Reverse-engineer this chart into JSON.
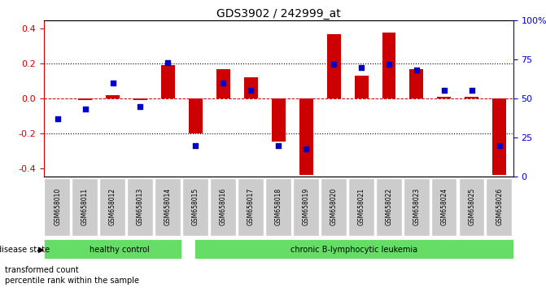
{
  "title": "GDS3902 / 242999_at",
  "samples": [
    "GSM658010",
    "GSM658011",
    "GSM658012",
    "GSM658013",
    "GSM658014",
    "GSM658015",
    "GSM658016",
    "GSM658017",
    "GSM658018",
    "GSM658019",
    "GSM658020",
    "GSM658021",
    "GSM658022",
    "GSM658023",
    "GSM658024",
    "GSM658025",
    "GSM658026"
  ],
  "red_bars": [
    0.0,
    -0.01,
    0.02,
    -0.01,
    0.19,
    -0.2,
    0.17,
    0.12,
    -0.25,
    -0.44,
    0.37,
    0.13,
    0.38,
    0.17,
    0.01,
    0.01,
    -0.44
  ],
  "blue_dots_pct": [
    37,
    43,
    60,
    45,
    73,
    20,
    60,
    55,
    20,
    18,
    72,
    70,
    72,
    68,
    55,
    55,
    20
  ],
  "ylim_left": [
    -0.45,
    0.45
  ],
  "yticks_left": [
    -0.4,
    -0.2,
    0.0,
    0.2,
    0.4
  ],
  "ytick_labels_right": [
    "0",
    "25",
    "50",
    "75",
    "100%"
  ],
  "yticks_right_pct": [
    0,
    25,
    50,
    75,
    100
  ],
  "healthy_count": 5,
  "healthy_label": "healthy control",
  "leukemia_label": "chronic B-lymphocytic leukemia",
  "disease_state_label": "disease state",
  "bar_color": "#cc0000",
  "dot_color": "#0000cc",
  "legend_bar": "transformed count",
  "legend_dot": "percentile rank within the sample",
  "green_color": "#66dd66",
  "gray_color": "#cccccc",
  "bar_width": 0.5
}
